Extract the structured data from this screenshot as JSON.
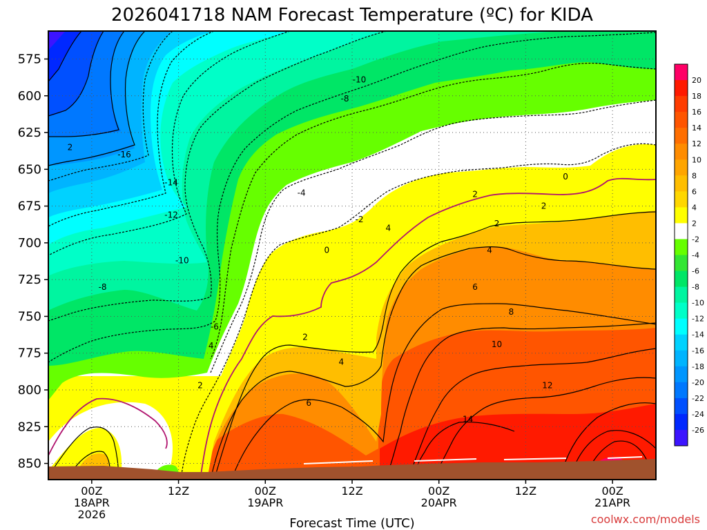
{
  "chart_data": {
    "type": "heatmap",
    "title": "2026041718 NAM Forecast Temperature (ºC) for KIDA",
    "xlabel": "Forecast Time (UTC)",
    "ylabel": "",
    "credit": "coolwx.com/models",
    "y_ticks": [
      "575",
      "600",
      "625",
      "650",
      "675",
      "700",
      "725",
      "750",
      "775",
      "800",
      "825",
      "850"
    ],
    "y_values": [
      575,
      600,
      625,
      650,
      675,
      700,
      725,
      750,
      775,
      800,
      825,
      850
    ],
    "ylim": [
      556,
      861
    ],
    "x_ticks": [
      {
        "hour": 6,
        "line1": "00Z",
        "line2": "18APR",
        "line3": "2026"
      },
      {
        "hour": 18,
        "line1": "12Z",
        "line2": "",
        "line3": ""
      },
      {
        "hour": 30,
        "line1": "00Z",
        "line2": "19APR",
        "line3": ""
      },
      {
        "hour": 42,
        "line1": "12Z",
        "line2": "",
        "line3": ""
      },
      {
        "hour": 54,
        "line1": "00Z",
        "line2": "20APR",
        "line3": ""
      },
      {
        "hour": 66,
        "line1": "12Z",
        "line2": "",
        "line3": ""
      },
      {
        "hour": 78,
        "line1": "00Z",
        "line2": "21APR",
        "line3": ""
      }
    ],
    "xlim": [
      0,
      84
    ],
    "colorbar": {
      "labels": [
        "20",
        "18",
        "16",
        "14",
        "12",
        "10",
        "8",
        "6",
        "4",
        "2",
        "-2",
        "-4",
        "-6",
        "-8",
        "-10",
        "-12",
        "-14",
        "-16",
        "-18",
        "-20",
        "-22",
        "-24",
        "-26"
      ],
      "levels": [
        22,
        20,
        18,
        16,
        14,
        12,
        10,
        8,
        6,
        4,
        2,
        -2,
        -4,
        -6,
        -8,
        -10,
        -12,
        -14,
        -16,
        -18,
        -20,
        -22,
        -24,
        -26,
        -28
      ],
      "colors": [
        "#ff0066",
        "#ff1a00",
        "#ff3c00",
        "#ff5500",
        "#ff6e00",
        "#ff8c00",
        "#ffa500",
        "#ffbe00",
        "#ffd700",
        "#ffff00",
        "#ffffff",
        "#66ff00",
        "#33e633",
        "#00e666",
        "#00f5a0",
        "#00ffc8",
        "#00ffff",
        "#00d2ff",
        "#00b4ff",
        "#0096ff",
        "#0078ff",
        "#0050ff",
        "#0028ff",
        "#3c14ff"
      ]
    },
    "contours": [
      {
        "value": "0",
        "label_hours": [
          38.5,
          71.5
        ],
        "label_p": [
          705,
          655
        ]
      },
      {
        "value": "2",
        "label_hours": [
          35.5,
          21,
          62,
          59,
          68.5,
          3
        ],
        "label_p": [
          764,
          797,
          687,
          667,
          675,
          635
        ]
      },
      {
        "value": "4",
        "label_hours": [
          40.5,
          22.5,
          47,
          61
        ],
        "label_p": [
          781,
          770,
          690,
          705
        ]
      },
      {
        "value": "6",
        "label_hours": [
          36,
          59
        ],
        "label_p": [
          809,
          730
        ]
      },
      {
        "value": "8",
        "label_hours": [
          64
        ],
        "label_p": [
          747
        ]
      },
      {
        "value": "10",
        "label_hours": [
          62
        ],
        "label_p": [
          769
        ]
      },
      {
        "value": "12",
        "label_hours": [
          69
        ],
        "label_p": [
          797
        ]
      },
      {
        "value": "14",
        "label_hours": [
          58
        ],
        "label_p": [
          820
        ]
      },
      {
        "value": "-2",
        "label_hours": [
          43
        ],
        "label_p": [
          684
        ]
      },
      {
        "value": "-4",
        "label_hours": [
          35
        ],
        "label_p": [
          666
        ]
      },
      {
        "value": "-6",
        "label_hours": [
          23
        ],
        "label_p": [
          757
        ]
      },
      {
        "value": "-8",
        "label_hours": [
          7.5,
          41
        ],
        "label_p": [
          730,
          602
        ]
      },
      {
        "value": "-10",
        "label_hours": [
          18.5,
          43
        ],
        "label_p": [
          712,
          589
        ]
      },
      {
        "value": "-12",
        "label_hours": [
          17
        ],
        "label_p": [
          681
        ]
      },
      {
        "value": "-14",
        "label_hours": [
          17
        ],
        "label_p": [
          659
        ]
      },
      {
        "value": "-16",
        "label_hours": [
          10.5
        ],
        "label_p": [
          640
        ]
      }
    ]
  }
}
